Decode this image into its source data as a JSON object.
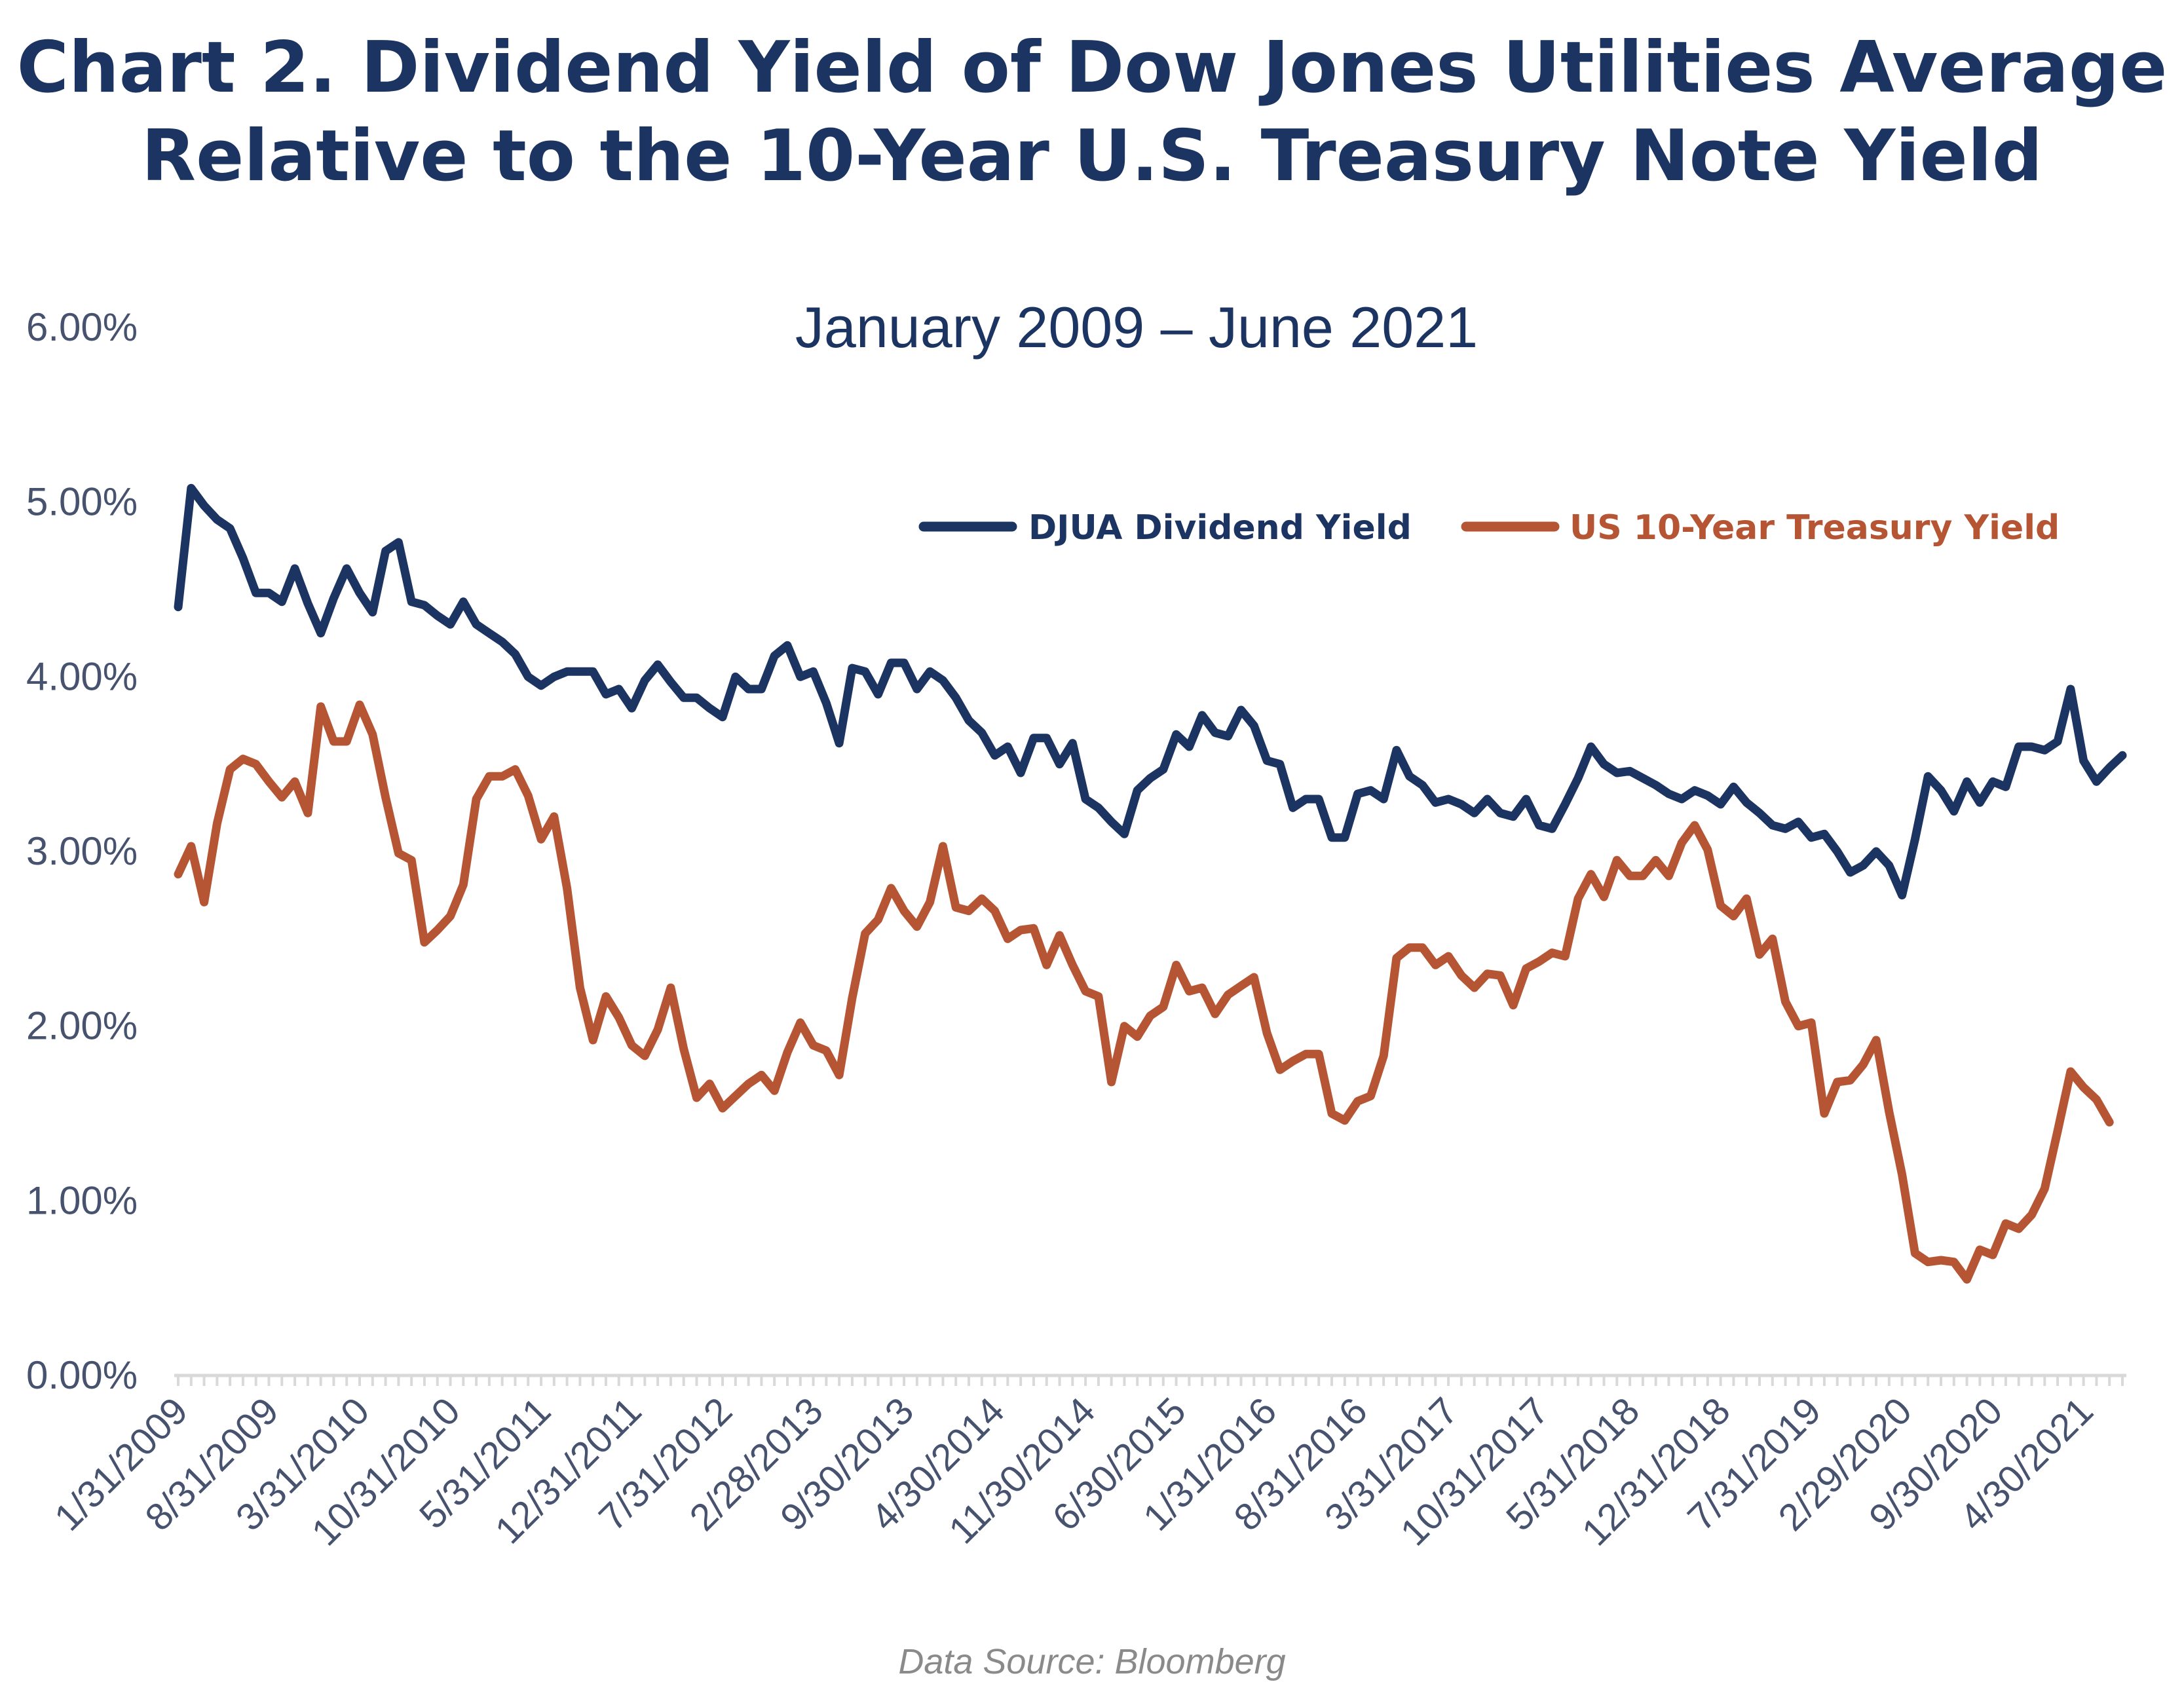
{
  "chart_data": {
    "type": "line",
    "title_lines": [
      "Chart 2. Dividend Yield of Dow Jones Utilities Average",
      "Relative to the 10-Year U.S. Treasury Note Yield"
    ],
    "subtitle": "January 2009 – June 2021",
    "source": "Data Source: Bloomberg",
    "ylim": [
      0,
      6
    ],
    "yticks": [
      "0.00%",
      "1.00%",
      "2.00%",
      "3.00%",
      "4.00%",
      "5.00%",
      "6.00%"
    ],
    "x_start": "1/31/2009",
    "xtick_labels": [
      "1/31/2009",
      "8/31/2009",
      "3/31/2010",
      "10/31/2010",
      "5/31/2011",
      "12/31/2011",
      "7/31/2012",
      "2/28/2013",
      "9/30/2013",
      "4/30/2014",
      "11/30/2014",
      "6/30/2015",
      "1/31/2016",
      "8/31/2016",
      "3/31/2017",
      "10/31/2017",
      "5/31/2018",
      "12/31/2018",
      "7/31/2019",
      "2/29/2020",
      "9/30/2020",
      "4/30/2021"
    ],
    "legend_position": "top-right",
    "grid": false,
    "series": [
      {
        "name": "DJUA Dividend Yield",
        "color": "#1c3461",
        "values": [
          4.4,
          5.08,
          4.98,
          4.9,
          4.85,
          4.68,
          4.48,
          4.48,
          4.43,
          4.62,
          4.42,
          4.25,
          4.45,
          4.62,
          4.48,
          4.37,
          4.72,
          4.77,
          4.43,
          4.41,
          4.35,
          4.3,
          4.43,
          4.3,
          4.25,
          4.2,
          4.13,
          4.0,
          3.95,
          4.0,
          4.03,
          4.03,
          4.03,
          3.9,
          3.93,
          3.82,
          3.98,
          4.07,
          3.97,
          3.88,
          3.88,
          3.82,
          3.77,
          4.0,
          3.93,
          3.93,
          4.12,
          4.18,
          4.0,
          4.03,
          3.85,
          3.62,
          4.05,
          4.03,
          3.9,
          4.08,
          4.08,
          3.93,
          4.03,
          3.98,
          3.88,
          3.75,
          3.68,
          3.55,
          3.6,
          3.45,
          3.65,
          3.65,
          3.5,
          3.62,
          3.3,
          3.25,
          3.17,
          3.1,
          3.35,
          3.42,
          3.47,
          3.67,
          3.6,
          3.78,
          3.68,
          3.66,
          3.81,
          3.72,
          3.52,
          3.5,
          3.25,
          3.3,
          3.3,
          3.08,
          3.08,
          3.33,
          3.35,
          3.3,
          3.58,
          3.43,
          3.38,
          3.28,
          3.3,
          3.27,
          3.22,
          3.3,
          3.22,
          3.2,
          3.3,
          3.15,
          3.13,
          3.27,
          3.42,
          3.6,
          3.5,
          3.45,
          3.46,
          3.42,
          3.38,
          3.33,
          3.3,
          3.35,
          3.32,
          3.27,
          3.37,
          3.28,
          3.22,
          3.15,
          3.13,
          3.17,
          3.08,
          3.1,
          3.0,
          2.88,
          2.92,
          3.0,
          2.92,
          2.75,
          3.07,
          3.43,
          3.35,
          3.23,
          3.4,
          3.28,
          3.4,
          3.37,
          3.6,
          3.6,
          3.58,
          3.63,
          3.93,
          3.52,
          3.4,
          3.48,
          3.55
        ]
      },
      {
        "name": "US 10-Year Treasury Yield",
        "color": "#b65533",
        "values": [
          2.87,
          3.03,
          2.71,
          3.16,
          3.47,
          3.53,
          3.5,
          3.4,
          3.31,
          3.4,
          3.22,
          3.83,
          3.63,
          3.63,
          3.84,
          3.67,
          3.31,
          2.99,
          2.95,
          2.48,
          2.55,
          2.63,
          2.81,
          3.3,
          3.43,
          3.43,
          3.47,
          3.32,
          3.07,
          3.2,
          2.79,
          2.22,
          1.92,
          2.17,
          2.05,
          1.89,
          1.83,
          1.98,
          2.22,
          1.87,
          1.59,
          1.67,
          1.53,
          1.6,
          1.67,
          1.72,
          1.63,
          1.85,
          2.02,
          1.89,
          1.86,
          1.72,
          2.16,
          2.53,
          2.61,
          2.79,
          2.66,
          2.57,
          2.71,
          3.03,
          2.68,
          2.66,
          2.73,
          2.66,
          2.5,
          2.55,
          2.56,
          2.35,
          2.52,
          2.35,
          2.2,
          2.17,
          1.68,
          2.0,
          1.94,
          2.06,
          2.11,
          2.35,
          2.2,
          2.22,
          2.07,
          2.18,
          2.23,
          2.28,
          1.96,
          1.75,
          1.8,
          1.84,
          1.84,
          1.5,
          1.46,
          1.57,
          1.6,
          1.83,
          2.39,
          2.45,
          2.45,
          2.35,
          2.4,
          2.29,
          2.22,
          2.3,
          2.29,
          2.12,
          2.33,
          2.37,
          2.42,
          2.4,
          2.73,
          2.87,
          2.74,
          2.95,
          2.86,
          2.86,
          2.95,
          2.86,
          3.05,
          3.15,
          3.01,
          2.69,
          2.63,
          2.73,
          2.41,
          2.5,
          2.14,
          2.0,
          2.02,
          1.5,
          1.68,
          1.69,
          1.78,
          1.92,
          1.51,
          1.15,
          0.7,
          0.65,
          0.66,
          0.65,
          0.55,
          0.72,
          0.69,
          0.87,
          0.84,
          0.92,
          1.07,
          1.4,
          1.74,
          1.65,
          1.58,
          1.45
        ]
      }
    ]
  }
}
